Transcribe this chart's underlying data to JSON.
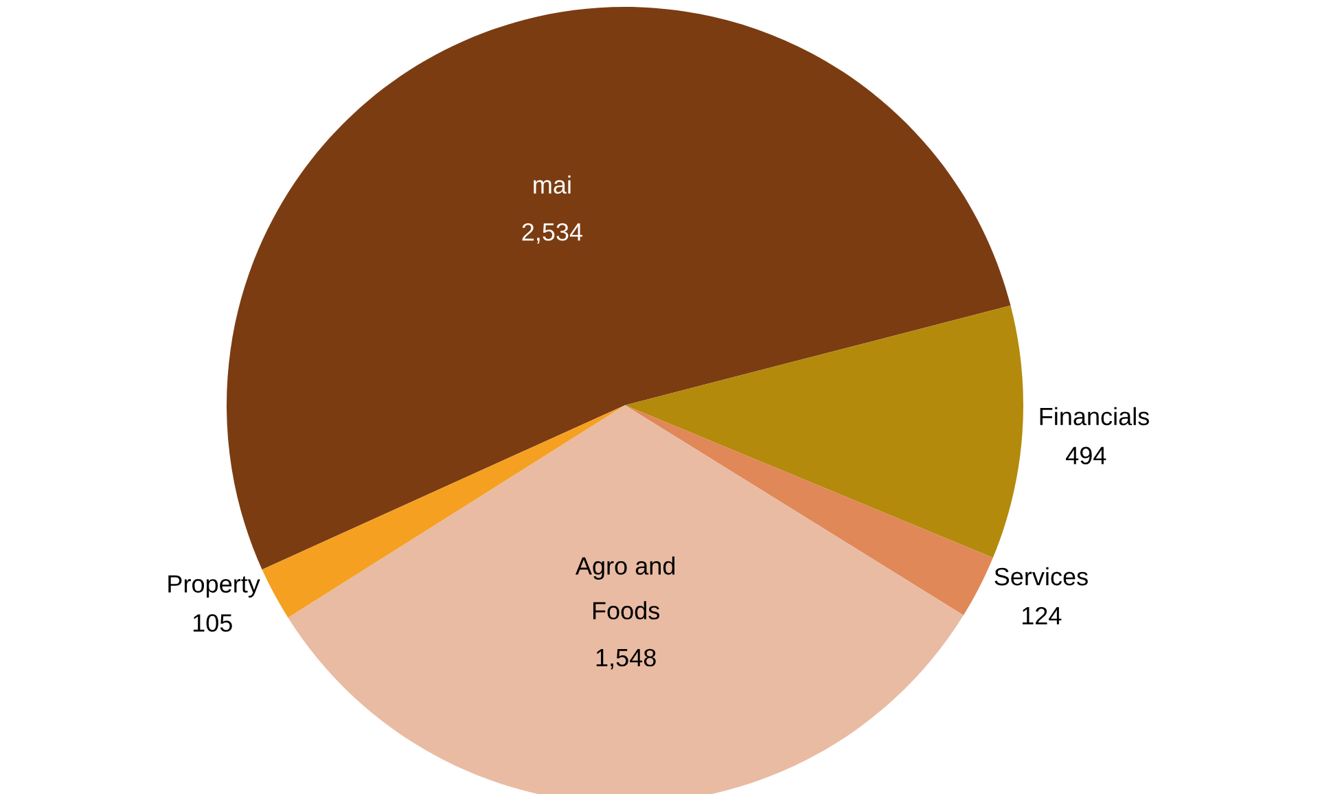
{
  "chart_data": {
    "type": "pie",
    "categories": [
      "mai",
      "Financials",
      "Services",
      "Agro and\nFoods",
      "Property"
    ],
    "values": [
      2534,
      494,
      124,
      1548,
      105
    ],
    "value_labels": [
      "2,534",
      "494",
      "124",
      "1,548",
      "105"
    ],
    "colors": [
      "#7b3c12",
      "#b48a0c",
      "#e08858",
      "#e9bba3",
      "#f5a020"
    ]
  }
}
